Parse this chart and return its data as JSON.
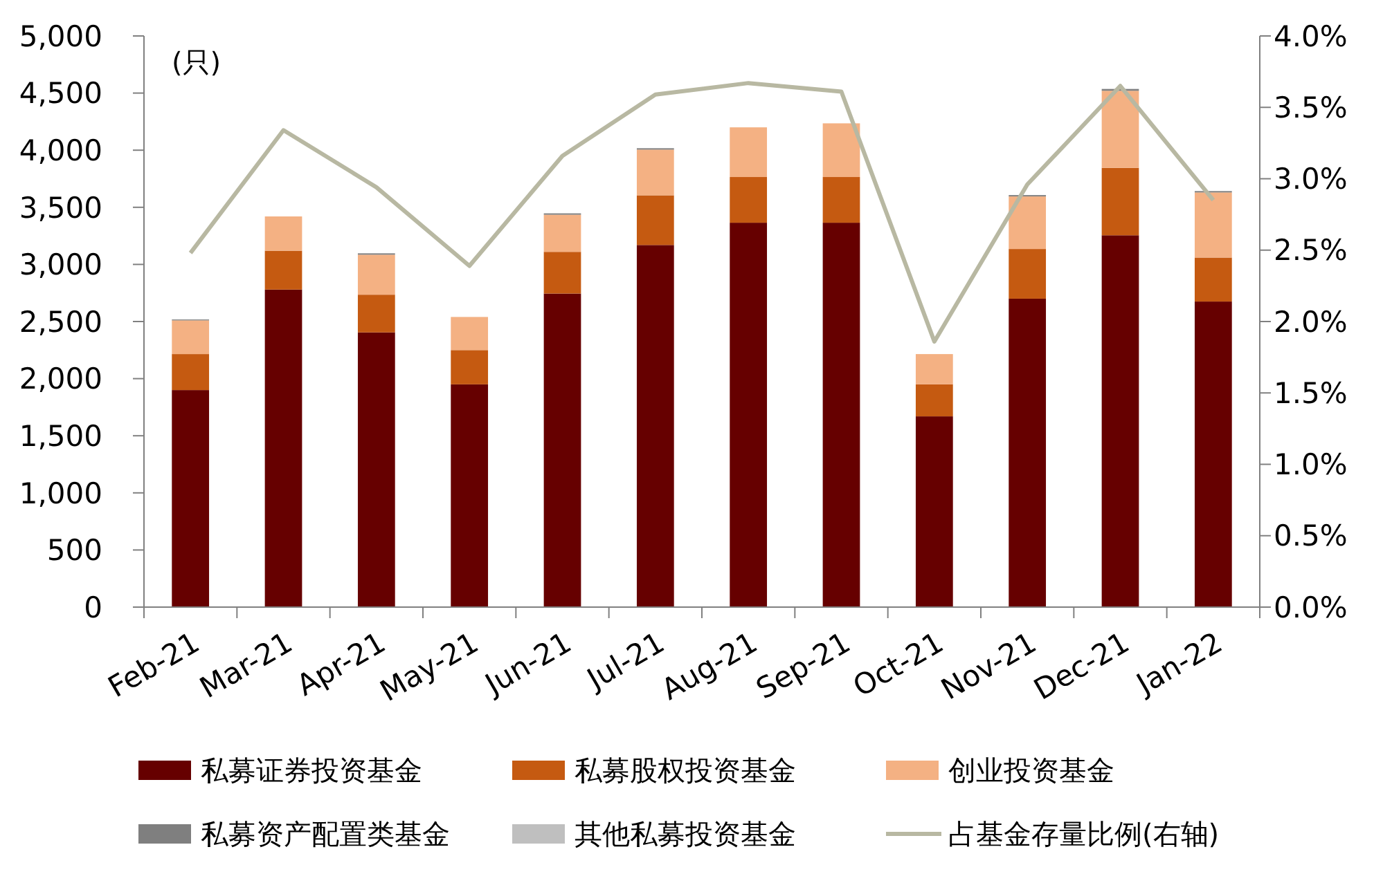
{
  "chart_data": {
    "type": "bar",
    "stacked": true,
    "ylabel": "(只)",
    "categories": [
      "Feb-21",
      "Mar-21",
      "Apr-21",
      "May-21",
      "Jun-21",
      "Jul-21",
      "Aug-21",
      "Sep-21",
      "Oct-21",
      "Nov-21",
      "Dec-21",
      "Jan-22"
    ],
    "series": [
      {
        "name": "私募证券投资基金",
        "color": "#660000",
        "values": [
          1900,
          2780,
          2405,
          1950,
          2745,
          3170,
          3365,
          3365,
          1670,
          2700,
          3255,
          2675
        ]
      },
      {
        "name": "私募股权投资基金",
        "color": "#c55a11",
        "values": [
          315,
          340,
          330,
          300,
          365,
          435,
          400,
          400,
          280,
          435,
          590,
          385
        ]
      },
      {
        "name": "创业投资基金",
        "color": "#f4b183",
        "values": [
          295,
          300,
          350,
          290,
          325,
          400,
          435,
          470,
          265,
          460,
          675,
          570
        ]
      },
      {
        "name": "私募资产配置类基金",
        "color": "#7f7f7f",
        "values": [
          8,
          0,
          12,
          0,
          12,
          12,
          0,
          0,
          0,
          12,
          16,
          12
        ]
      },
      {
        "name": "其他私募投资基金",
        "color": "#bfbfbf",
        "values": [
          0,
          0,
          0,
          0,
          0,
          0,
          0,
          0,
          0,
          0,
          0,
          0
        ]
      },
      {
        "name": "占基金存量比例(右轴)",
        "type": "line",
        "axis": "y2",
        "color": "#b8b8a2",
        "values": [
          2.48,
          3.34,
          2.94,
          2.39,
          3.16,
          3.59,
          3.67,
          3.61,
          1.86,
          2.96,
          3.65,
          2.85
        ]
      }
    ],
    "ylim": [
      0,
      5000
    ],
    "yticks": [
      0,
      500,
      {
        "value": 1000,
        "label": "1,000"
      },
      {
        "value": 1500,
        "label": "1,500"
      },
      {
        "value": 2000,
        "label": "2,000"
      },
      {
        "value": 2500,
        "label": "2,500"
      },
      {
        "value": 3000,
        "label": "3,000"
      },
      {
        "value": 3500,
        "label": "3,500"
      },
      {
        "value": 4000,
        "label": "4,000"
      },
      {
        "value": 4500,
        "label": "4,500"
      },
      {
        "value": 5000,
        "label": "5,000"
      }
    ],
    "y2lim": [
      0,
      4
    ],
    "y2ticks": [
      {
        "value": 0,
        "label": "0.0%"
      },
      {
        "value": 0.5,
        "label": "0.5%"
      },
      {
        "value": 1,
        "label": "1.0%"
      },
      {
        "value": 1.5,
        "label": "1.5%"
      },
      {
        "value": 2,
        "label": "2.0%"
      },
      {
        "value": 2.5,
        "label": "2.5%"
      },
      {
        "value": 3,
        "label": "3.0%"
      },
      {
        "value": 3.5,
        "label": "3.5%"
      },
      {
        "value": 4,
        "label": "4.0%"
      }
    ],
    "grid": false,
    "legend": "bottom",
    "marker": "none"
  }
}
